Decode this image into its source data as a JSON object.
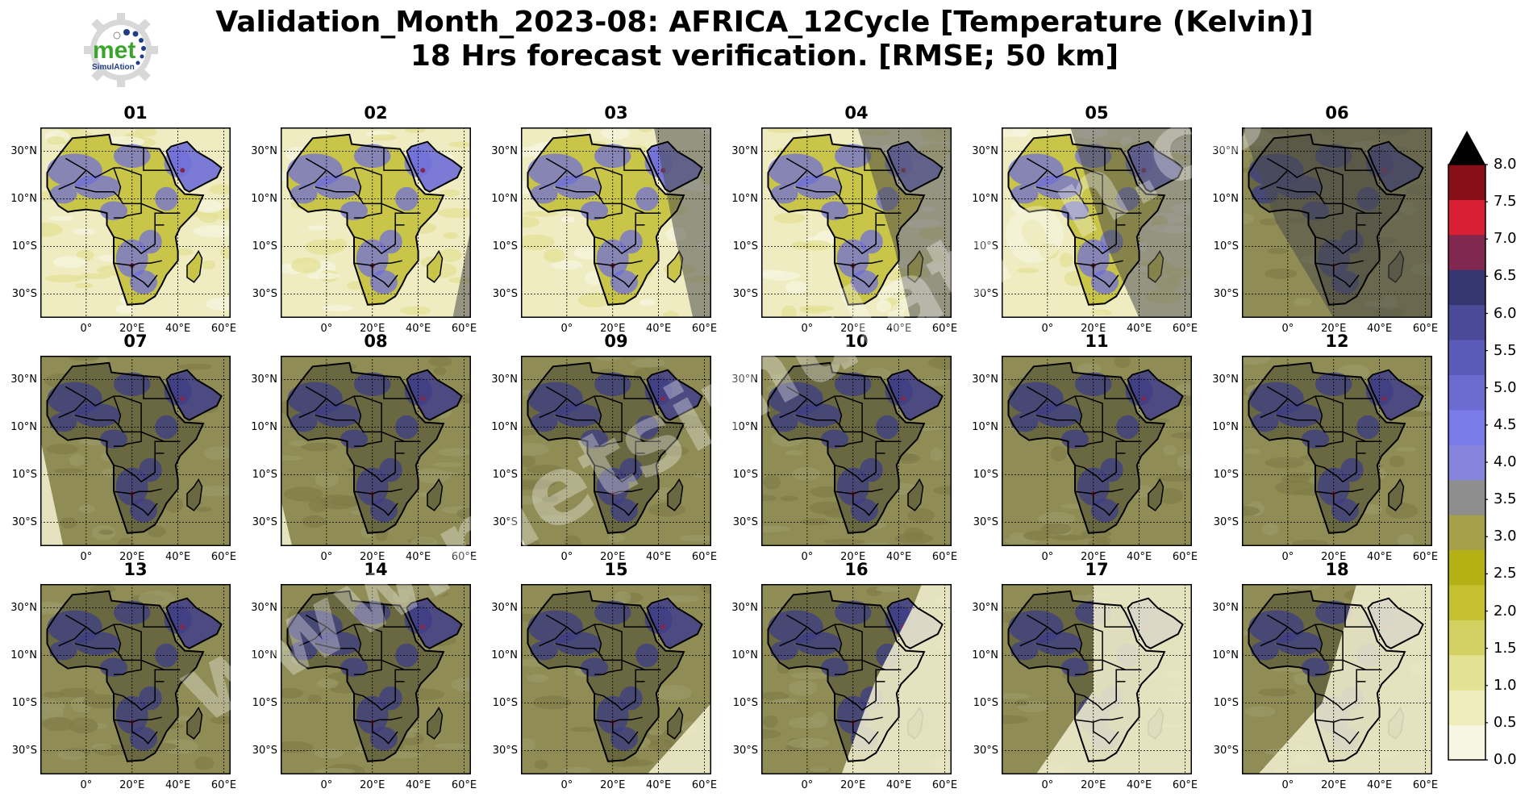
{
  "header": {
    "title_line1": "Validation_Month_2023-08: AFRICA_12Cycle [Temperature (Kelvin)]",
    "title_line2": "18 Hrs forecast verification.  [RMSE; 50 km]"
  },
  "logo": {
    "word": "met",
    "subword": "SimulAtion"
  },
  "watermark": "www.metsimulation.com",
  "chart_data": {
    "type": "heatmap",
    "panels": [
      "01",
      "02",
      "03",
      "04",
      "05",
      "06",
      "07",
      "08",
      "09",
      "10",
      "11",
      "12",
      "13",
      "14",
      "15",
      "16",
      "17",
      "18"
    ],
    "lat_ticks": [
      "30°N",
      "10°N",
      "10°S",
      "30°S"
    ],
    "lon_ticks": [
      "0°",
      "20°E",
      "40°E",
      "60°E"
    ],
    "colorbar": {
      "levels": [
        0.0,
        0.5,
        1.0,
        1.5,
        2.0,
        2.5,
        3.0,
        3.5,
        4.0,
        4.5,
        5.0,
        5.5,
        6.0,
        6.5,
        7.0,
        7.5,
        8.0
      ],
      "labels": [
        "0.0",
        "0.5",
        "1.0",
        "1.5",
        "2.0",
        "2.5",
        "3.0",
        "3.5",
        "4.0",
        "4.5",
        "5.0",
        "5.5",
        "6.0",
        "6.5",
        "7.0",
        "7.5",
        "8.0"
      ],
      "colors": [
        "#f7f6e3",
        "#efedbb",
        "#e3e193",
        "#d4d163",
        "#c4c02f",
        "#b5b014",
        "#a5a04a",
        "#8e8e8e",
        "#8585de",
        "#7a7ae8",
        "#6b6bd2",
        "#5a5ab8",
        "#4a4a98",
        "#363672",
        "#802850",
        "#d81f33",
        "#870e15"
      ],
      "extend": "max",
      "extend_color": "#000000"
    }
  }
}
